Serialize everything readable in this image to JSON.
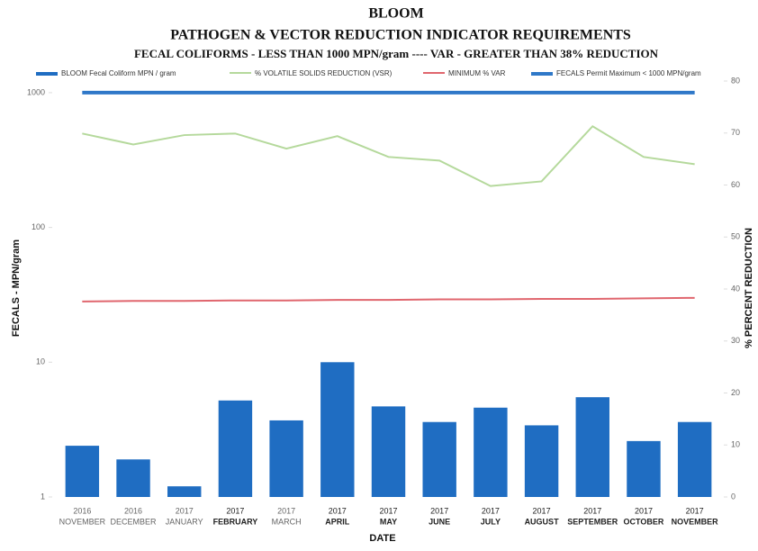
{
  "chart_data": {
    "type": "bar",
    "title": [
      "BLOOM",
      "PATHOGEN & VECTOR  REDUCTION  INDICATOR REQUIREMENTS"
    ],
    "subtitle": "FECAL COLIFORMS - LESS THAN 1000 MPN/gram  ----  VAR - GREATER THAN 38% REDUCTION",
    "x_label": "DATE",
    "y_label": "FECALS - MPN/gram",
    "y2_label": "% PERCENT REDUCTION",
    "log_y": true,
    "ylim": [
      1,
      1220
    ],
    "yticks": [
      1,
      10,
      100,
      1000
    ],
    "y2lim": [
      0,
      80
    ],
    "y2ticks": [
      0,
      10,
      20,
      30,
      40,
      50,
      60,
      70,
      80
    ],
    "categories": [
      [
        "2016",
        "NOVEMBER"
      ],
      [
        "2016",
        "DECEMBER"
      ],
      [
        "2017",
        "JANUARY"
      ],
      [
        "2017",
        "FEBRUARY"
      ],
      [
        "2017",
        "MARCH"
      ],
      [
        "2017",
        "APRIL"
      ],
      [
        "2017",
        "MAY"
      ],
      [
        "2017",
        "JUNE"
      ],
      [
        "2017",
        "JULY"
      ],
      [
        "2017",
        "AUGUST"
      ],
      [
        "2017",
        "SEPTEMBER"
      ],
      [
        "2017",
        "OCTOBER"
      ],
      [
        "2017",
        "NOVEMBER"
      ]
    ],
    "series": [
      {
        "name": "BLOOM  Fecal Coliform MPN / gram",
        "type": "bar",
        "color": "#1f6dc2",
        "axis": "y",
        "values": [
          2.4,
          1.9,
          1.2,
          5.2,
          3.7,
          10,
          4.7,
          3.6,
          4.6,
          3.4,
          5.5,
          2.6,
          3.6
        ]
      },
      {
        "name": "% VOLATILE SOLIDS REDUCTION (VSR)",
        "type": "line",
        "color": "#b5d99c",
        "axis": "y2",
        "values": [
          69.9,
          67.8,
          69.6,
          69.9,
          67,
          69.4,
          65.4,
          64.7,
          59.8,
          60.7,
          71.3,
          65.4,
          64
        ]
      },
      {
        "name": "MINIMUM % VAR",
        "type": "line",
        "color": "#e0666e",
        "axis": "y2",
        "values": [
          37.6,
          37.7,
          37.7,
          37.8,
          37.8,
          37.9,
          37.9,
          38,
          38,
          38.1,
          38.1,
          38.2,
          38.3
        ]
      },
      {
        "name": "FECALS  Permit Maximum  < 1000 MPN/gram",
        "type": "line",
        "color": "#2f78c8",
        "axis": "y",
        "values": [
          1000,
          1000,
          1000,
          1000,
          1000,
          1000,
          1000,
          1000,
          1000,
          1000,
          1000,
          1000,
          1000
        ]
      }
    ]
  }
}
